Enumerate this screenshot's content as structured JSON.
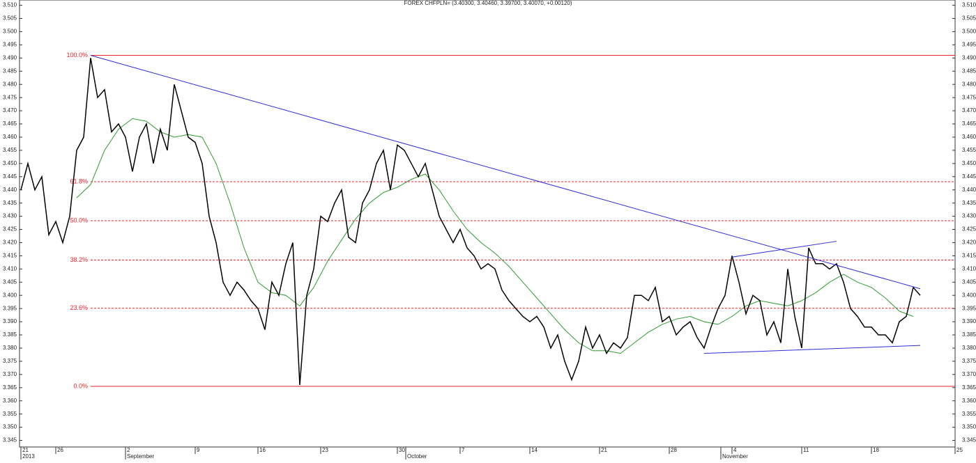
{
  "chart_data": {
    "type": "line",
    "title": "FOREX CHFPLN= (3.40300, 3.40460, 3.39700, 3.40070, +0.00120)",
    "xlim": [
      0,
      67
    ],
    "xticks": [
      {
        "value": 0,
        "label": "21"
      },
      {
        "value": 2.5,
        "label": "26"
      },
      {
        "value": 7.5,
        "label": "2"
      },
      {
        "value": 12.5,
        "label": "9"
      },
      {
        "value": 17,
        "label": "16"
      },
      {
        "value": 21.5,
        "label": "23"
      },
      {
        "value": 27,
        "label": "30"
      },
      {
        "value": 31.5,
        "label": "7"
      },
      {
        "value": 36.5,
        "label": "14"
      },
      {
        "value": 41.5,
        "label": "21"
      },
      {
        "value": 46.5,
        "label": "28"
      },
      {
        "value": 51,
        "label": "4"
      },
      {
        "value": 56,
        "label": "11"
      },
      {
        "value": 61,
        "label": "18"
      },
      {
        "value": 67,
        "label": "25"
      }
    ],
    "x_group_labels": [
      {
        "value": 0,
        "label": "2013"
      },
      {
        "value": 7.5,
        "label": "September"
      },
      {
        "value": 27.6,
        "label": "October"
      },
      {
        "value": 50.2,
        "label": "November"
      }
    ],
    "ylim": [
      3.3425,
      3.512
    ],
    "yticks": [
      {
        "value": 3.345,
        "label": "3.345"
      },
      {
        "value": 3.35,
        "label": "3.350"
      },
      {
        "value": 3.355,
        "label": "3.355"
      },
      {
        "value": 3.36,
        "label": "3.360"
      },
      {
        "value": 3.365,
        "label": "3.365"
      },
      {
        "value": 3.37,
        "label": "3.370"
      },
      {
        "value": 3.375,
        "label": "3.375"
      },
      {
        "value": 3.38,
        "label": "3.380"
      },
      {
        "value": 3.385,
        "label": "3.385"
      },
      {
        "value": 3.39,
        "label": "3.390"
      },
      {
        "value": 3.395,
        "label": "3.395"
      },
      {
        "value": 3.4,
        "label": "3.400"
      },
      {
        "value": 3.405,
        "label": "3.405"
      },
      {
        "value": 3.41,
        "label": "3.410"
      },
      {
        "value": 3.415,
        "label": "3.415"
      },
      {
        "value": 3.42,
        "label": "3.420"
      },
      {
        "value": 3.425,
        "label": "3.425"
      },
      {
        "value": 3.43,
        "label": "3.430"
      },
      {
        "value": 3.435,
        "label": "3.435"
      },
      {
        "value": 3.44,
        "label": "3.440"
      },
      {
        "value": 3.445,
        "label": "3.445"
      },
      {
        "value": 3.45,
        "label": "3.450"
      },
      {
        "value": 3.455,
        "label": "3.455"
      },
      {
        "value": 3.46,
        "label": "3.460"
      },
      {
        "value": 3.465,
        "label": "3.465"
      },
      {
        "value": 3.47,
        "label": "3.470"
      },
      {
        "value": 3.475,
        "label": "3.475"
      },
      {
        "value": 3.48,
        "label": "3.480"
      },
      {
        "value": 3.485,
        "label": "3.485"
      },
      {
        "value": 3.49,
        "label": "3.490"
      },
      {
        "value": 3.495,
        "label": "3.495"
      },
      {
        "value": 3.5,
        "label": "3.500"
      },
      {
        "value": 3.505,
        "label": "3.505"
      },
      {
        "value": 3.51,
        "label": "3.510"
      }
    ],
    "series": [
      {
        "color": "#000000",
        "x": [
          0,
          0.5,
          1,
          1.5,
          2,
          2.5,
          3,
          3.5,
          4,
          4.5,
          5,
          5.5,
          6,
          6.5,
          7,
          7.5,
          8,
          8.5,
          9,
          9.5,
          10,
          10.5,
          11,
          11.5,
          12,
          12.5,
          13,
          13.5,
          14,
          14.5,
          15,
          15.5,
          16,
          16.5,
          17,
          17.5,
          18,
          18.5,
          19,
          19.5,
          20,
          20.5,
          21,
          21.5,
          22,
          22.5,
          23,
          23.5,
          24,
          24.5,
          25,
          25.5,
          26,
          26.5,
          27,
          27.5,
          28,
          28.5,
          29,
          29.5,
          30,
          30.5,
          31,
          31.5,
          32,
          32.5,
          33,
          33.5,
          34,
          34.5,
          35,
          35.5,
          36,
          36.5,
          37,
          37.5,
          38,
          38.5,
          39,
          39.5,
          40,
          40.5,
          41,
          41.5,
          42,
          42.5,
          43,
          43.5,
          44,
          44.5,
          45,
          45.5,
          46,
          46.5,
          47,
          47.5,
          48,
          48.5,
          49,
          49.5,
          50,
          50.5,
          51,
          51.5,
          52,
          52.5,
          53,
          53.5,
          54,
          54.5,
          55,
          55.5,
          56,
          56.5,
          57,
          57.5,
          58,
          58.5,
          59,
          59.5,
          60,
          60.5,
          61,
          61.5,
          62,
          62.5,
          63,
          63.5,
          64,
          64.5
        ],
        "values": [
          3.44,
          3.45,
          3.44,
          3.445,
          3.423,
          3.428,
          3.42,
          3.43,
          3.455,
          3.46,
          3.49,
          3.475,
          3.478,
          3.462,
          3.465,
          3.46,
          3.447,
          3.46,
          3.465,
          3.45,
          3.463,
          3.455,
          3.48,
          3.47,
          3.46,
          3.458,
          3.45,
          3.43,
          3.42,
          3.405,
          3.4,
          3.405,
          3.402,
          3.398,
          3.395,
          3.387,
          3.405,
          3.4,
          3.412,
          3.42,
          3.366,
          3.4,
          3.41,
          3.43,
          3.428,
          3.435,
          3.44,
          3.422,
          3.42,
          3.435,
          3.44,
          3.45,
          3.455,
          3.44,
          3.457,
          3.455,
          3.45,
          3.445,
          3.45,
          3.44,
          3.43,
          3.425,
          3.42,
          3.425,
          3.418,
          3.415,
          3.41,
          3.412,
          3.41,
          3.402,
          3.398,
          3.395,
          3.392,
          3.39,
          3.392,
          3.388,
          3.38,
          3.385,
          3.375,
          3.368,
          3.375,
          3.388,
          3.38,
          3.385,
          3.378,
          3.382,
          3.38,
          3.384,
          3.4,
          3.4,
          3.398,
          3.403,
          3.39,
          3.392,
          3.385,
          3.388,
          3.39,
          3.384,
          3.38,
          3.388,
          3.395,
          3.4,
          3.415,
          3.405,
          3.393,
          3.4,
          3.398,
          3.385,
          3.39,
          3.382,
          3.41,
          3.392,
          3.38,
          3.418,
          3.412,
          3.412,
          3.41,
          3.412,
          3.405,
          3.395,
          3.392,
          3.388,
          3.388,
          3.385,
          3.385,
          3.382,
          3.39,
          3.392,
          3.403,
          3.4
        ]
      },
      {
        "color": "#2e9e2e",
        "x": [
          4,
          5,
          6,
          7,
          8,
          9,
          10,
          11,
          12,
          13,
          14,
          15,
          16,
          17,
          18,
          19,
          20,
          21,
          22,
          23,
          24,
          25,
          26,
          27,
          28,
          29,
          30,
          31,
          32,
          33,
          34,
          35,
          36,
          37,
          38,
          39,
          40,
          41,
          42,
          43,
          44,
          45,
          46,
          47,
          48,
          49,
          50,
          51,
          52,
          53,
          54,
          55,
          56,
          57,
          58,
          59,
          60,
          61,
          62,
          63,
          64
        ],
        "values": [
          3.437,
          3.442,
          3.455,
          3.463,
          3.467,
          3.466,
          3.462,
          3.46,
          3.461,
          3.46,
          3.45,
          3.435,
          3.418,
          3.405,
          3.401,
          3.4,
          3.396,
          3.403,
          3.413,
          3.421,
          3.429,
          3.435,
          3.439,
          3.441,
          3.444,
          3.446,
          3.44,
          3.432,
          3.425,
          3.42,
          3.416,
          3.411,
          3.405,
          3.399,
          3.393,
          3.387,
          3.382,
          3.379,
          3.379,
          3.378,
          3.382,
          3.386,
          3.389,
          3.391,
          3.392,
          3.39,
          3.389,
          3.392,
          3.396,
          3.398,
          3.397,
          3.396,
          3.398,
          3.401,
          3.405,
          3.408,
          3.405,
          3.403,
          3.399,
          3.394,
          3.392
        ]
      }
    ],
    "fib_color": "#e8232a",
    "fib_levels": [
      {
        "label": "100.0%",
        "value": 3.491
      },
      {
        "label": "61.8%",
        "value": 3.4431
      },
      {
        "label": "50.0%",
        "value": 3.4283
      },
      {
        "label": "38.2%",
        "value": 3.4134
      },
      {
        "label": "23.6%",
        "value": 3.3951
      },
      {
        "label": "0.0%",
        "value": 3.3655
      }
    ],
    "fib_start": 5,
    "trend_color": "#2b2bdc",
    "trendlines": [
      {
        "x": [
          5,
          64.5
        ],
        "y": [
          3.491,
          3.4025
        ]
      },
      {
        "x": [
          51,
          58.5
        ],
        "y": [
          3.4145,
          3.4205
        ]
      },
      {
        "x": [
          49,
          64.5
        ],
        "y": [
          3.378,
          3.381
        ]
      }
    ]
  }
}
